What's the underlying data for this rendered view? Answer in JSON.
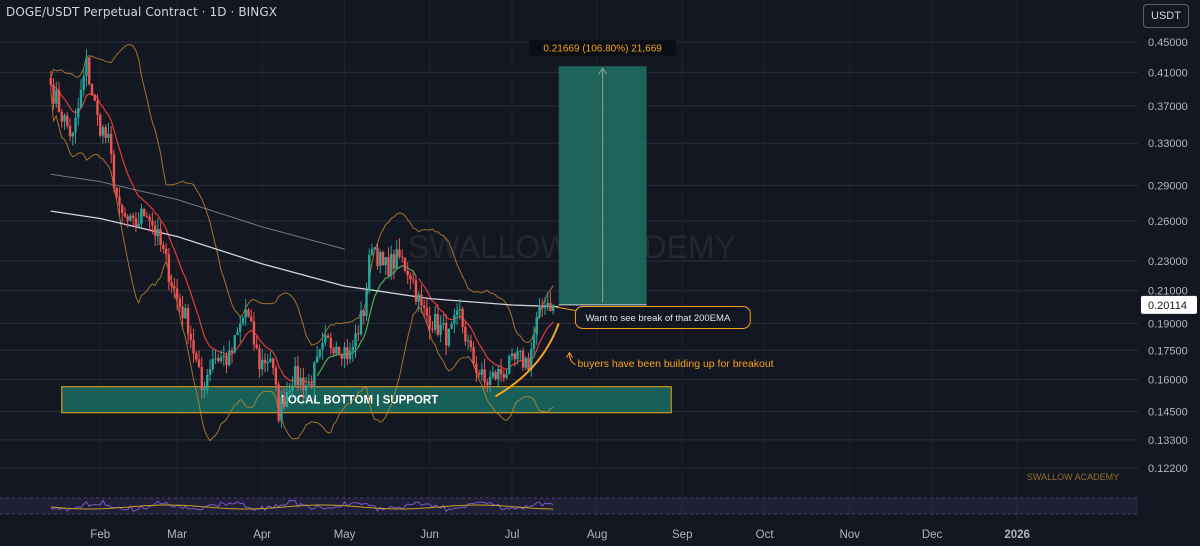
{
  "header": {
    "title": "DOGE/USDT Perpetual Contract · 1D · BINGX",
    "currency_button": "USDT"
  },
  "colors": {
    "background": "#131722",
    "candle_up": "#26a69a",
    "candle_down": "#ef5350",
    "ema200": "#d1d4dc",
    "bollinger": "#c08a2e",
    "ema_short_red": "#e53935",
    "ema_short_green": "#4caf50",
    "target_zone": "#1f6b60",
    "support_zone": "#1a6d60",
    "annotation": "#f7a21b",
    "rsi_line": "#7e57c2"
  },
  "chart_data": {
    "type": "candlestick",
    "title": "DOGE/USDT Perpetual Contract · 1D · BINGX",
    "y_axis": {
      "scale": "log",
      "ylim": [
        0.115,
        0.47
      ],
      "ticks": [
        "0.45000",
        "0.41000",
        "0.37000",
        "0.33000",
        "0.29000",
        "0.26000",
        "0.23000",
        "0.21000",
        "0.19000",
        "0.17500",
        "0.16000",
        "0.14500",
        "0.13300",
        "0.12200"
      ],
      "current_price": "0.20114"
    },
    "x_axis": {
      "ticks": [
        "Feb",
        "Mar",
        "Apr",
        "May",
        "Jun",
        "Jul",
        "Aug",
        "Sep",
        "Oct",
        "Nov",
        "Dec",
        "2026"
      ],
      "range": [
        "2025-01-14",
        "2026-01-29"
      ]
    },
    "price_path": [
      {
        "date": "2025-01-14",
        "close": 0.395
      },
      {
        "date": "2025-01-18",
        "close": 0.36
      },
      {
        "date": "2025-01-22",
        "close": 0.335
      },
      {
        "date": "2025-01-27",
        "close": 0.42
      },
      {
        "date": "2025-01-31",
        "close": 0.355
      },
      {
        "date": "2025-02-04",
        "close": 0.33
      },
      {
        "date": "2025-02-08",
        "close": 0.265
      },
      {
        "date": "2025-02-13",
        "close": 0.255
      },
      {
        "date": "2025-02-18",
        "close": 0.27
      },
      {
        "date": "2025-02-24",
        "close": 0.235
      },
      {
        "date": "2025-03-01",
        "close": 0.205
      },
      {
        "date": "2025-03-05",
        "close": 0.19
      },
      {
        "date": "2025-03-10",
        "close": 0.155
      },
      {
        "date": "2025-03-14",
        "close": 0.172
      },
      {
        "date": "2025-03-20",
        "close": 0.17
      },
      {
        "date": "2025-03-26",
        "close": 0.198
      },
      {
        "date": "2025-03-31",
        "close": 0.168
      },
      {
        "date": "2025-04-04",
        "close": 0.172
      },
      {
        "date": "2025-04-07",
        "close": 0.145
      },
      {
        "date": "2025-04-12",
        "close": 0.162
      },
      {
        "date": "2025-04-18",
        "close": 0.157
      },
      {
        "date": "2025-04-24",
        "close": 0.178
      },
      {
        "date": "2025-04-28",
        "close": 0.18
      },
      {
        "date": "2025-05-03",
        "close": 0.172
      },
      {
        "date": "2025-05-08",
        "close": 0.198
      },
      {
        "date": "2025-05-11",
        "close": 0.245
      },
      {
        "date": "2025-05-15",
        "close": 0.225
      },
      {
        "date": "2025-05-21",
        "close": 0.232
      },
      {
        "date": "2025-05-25",
        "close": 0.222
      },
      {
        "date": "2025-05-29",
        "close": 0.198
      },
      {
        "date": "2025-06-03",
        "close": 0.19
      },
      {
        "date": "2025-06-08",
        "close": 0.182
      },
      {
        "date": "2025-06-12",
        "close": 0.195
      },
      {
        "date": "2025-06-16",
        "close": 0.172
      },
      {
        "date": "2025-06-21",
        "close": 0.158
      },
      {
        "date": "2025-06-25",
        "close": 0.162
      },
      {
        "date": "2025-06-29",
        "close": 0.165
      },
      {
        "date": "2025-07-03",
        "close": 0.17
      },
      {
        "date": "2025-07-07",
        "close": 0.169
      },
      {
        "date": "2025-07-10",
        "close": 0.19
      },
      {
        "date": "2025-07-13",
        "close": 0.204
      },
      {
        "date": "2025-07-16",
        "close": 0.20114
      }
    ],
    "ema200_path": [
      {
        "date": "2025-01-14",
        "close": 0.268
      },
      {
        "date": "2025-02-01",
        "close": 0.262
      },
      {
        "date": "2025-03-01",
        "close": 0.248
      },
      {
        "date": "2025-04-01",
        "close": 0.228
      },
      {
        "date": "2025-05-01",
        "close": 0.213
      },
      {
        "date": "2025-06-01",
        "close": 0.205
      },
      {
        "date": "2025-07-01",
        "close": 0.201
      },
      {
        "date": "2025-07-18",
        "close": 0.2
      }
    ],
    "long_position": {
      "entry": 0.2011,
      "target": 0.4178,
      "start_date": "2025-07-18",
      "end_date": "2025-08-19",
      "label": "0.21669 (106.80%) 21,669"
    },
    "support_zone": {
      "top": 0.1565,
      "bottom": 0.1445,
      "start_date": "2025-01-18",
      "end_date": "2025-08-28",
      "label": "LOCAL BOTTOM | SUPPORT"
    },
    "annotations": [
      {
        "text": "Want to see break of that 200EMA",
        "date": "2025-07-19",
        "price": 0.1935
      },
      {
        "text": "buyers have been building up for breakout",
        "date": "2025-07-19",
        "price": 0.168
      }
    ],
    "watermark": "SWALLOW ACADEMY",
    "watermark_small": "SWALLOW ACADEMY"
  }
}
